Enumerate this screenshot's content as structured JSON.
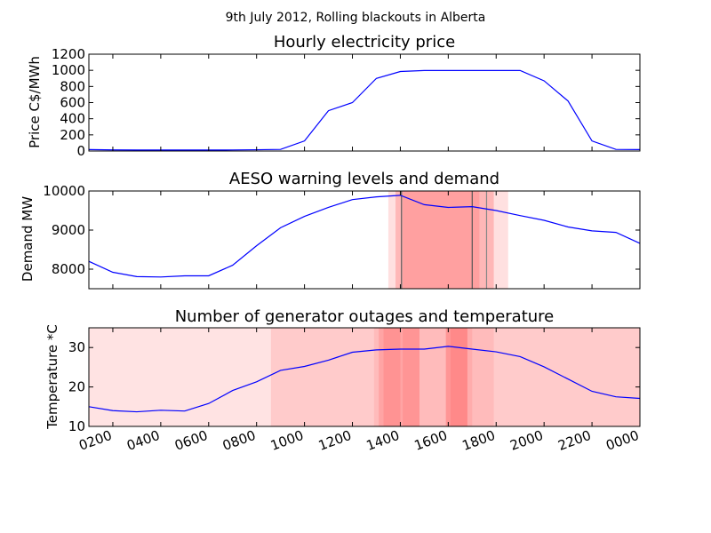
{
  "figure_title": "9th July 2012, Rolling blackouts in Alberta",
  "x_tick_labels": [
    "0200",
    "0400",
    "0600",
    "0800",
    "1000",
    "1200",
    "1400",
    "1600",
    "1800",
    "2000",
    "2200",
    "0000"
  ],
  "colors": {
    "line": "#0000ff",
    "band_light": "#ff0000",
    "frame": "#000000"
  },
  "chart_data": [
    {
      "type": "line",
      "title": "Hourly electricity price",
      "xlabel": "",
      "ylabel": "Price C$/MWh",
      "xlim": [
        1,
        24
      ],
      "ylim": [
        0,
        1200
      ],
      "yticks": [
        0,
        200,
        400,
        600,
        800,
        1000,
        1200
      ],
      "x": [
        1,
        2,
        3,
        4,
        5,
        6,
        7,
        8,
        9,
        10,
        11,
        12,
        13,
        14,
        15,
        16,
        17,
        18,
        19,
        20,
        21,
        22,
        23,
        24
      ],
      "series": [
        {
          "values": [
            18,
            14,
            12,
            12,
            12,
            12,
            13,
            16,
            20,
            125,
            500,
            600,
            900,
            985,
            998,
            998,
            998,
            998,
            998,
            870,
            620,
            125,
            20,
            18
          ]
        }
      ],
      "bands": []
    },
    {
      "type": "line",
      "title": "AESO warning levels and demand",
      "xlabel": "",
      "ylabel": "Demand MW",
      "xlim": [
        1,
        24
      ],
      "ylim": [
        7500,
        10000
      ],
      "yticks": [
        8000,
        9000,
        10000
      ],
      "x": [
        1,
        2,
        3,
        4,
        5,
        6,
        7,
        8,
        9,
        10,
        11,
        12,
        13,
        14,
        15,
        16,
        17,
        18,
        19,
        20,
        21,
        22,
        23,
        24
      ],
      "series": [
        {
          "values": [
            8200,
            7920,
            7810,
            7800,
            7830,
            7830,
            8100,
            8600,
            9060,
            9350,
            9580,
            9780,
            9850,
            9890,
            9650,
            9580,
            9600,
            9500,
            9370,
            9250,
            9080,
            8980,
            8940,
            8660
          ]
        }
      ],
      "bands": [
        {
          "x0": 13.5,
          "x1": 18.5,
          "alpha": 0.12
        },
        {
          "x0": 13.8,
          "x1": 17.9,
          "alpha": 0.18
        },
        {
          "x0": 14.1,
          "x1": 17.3,
          "alpha": 0.12
        }
      ],
      "vlines": [
        {
          "x": 14.05,
          "color": "#555555"
        },
        {
          "x": 17.0,
          "color": "#555555"
        },
        {
          "x": 17.6,
          "color": "#888888"
        }
      ]
    },
    {
      "type": "line",
      "title": "Number of generator outages and temperature",
      "xlabel": "",
      "ylabel": "Temperature *C",
      "xlim": [
        1,
        24
      ],
      "ylim": [
        10,
        35
      ],
      "yticks": [
        10,
        20,
        30
      ],
      "x": [
        1,
        2,
        3,
        4,
        5,
        6,
        7,
        8,
        9,
        10,
        11,
        12,
        13,
        14,
        15,
        16,
        17,
        18,
        19,
        20,
        21,
        22,
        23,
        24
      ],
      "series": [
        {
          "values": [
            15,
            14,
            13.7,
            14.1,
            13.9,
            15.8,
            19.1,
            21.3,
            24.2,
            25.2,
            26.8,
            28.8,
            29.4,
            29.6,
            29.6,
            30.3,
            29.6,
            28.9,
            27.7,
            25.1,
            22,
            18.9,
            17.5,
            17.1
          ]
        }
      ],
      "bands": [
        {
          "x0": 1,
          "x1": 24,
          "alpha": 0.11
        },
        {
          "x0": 8.6,
          "x1": 24,
          "alpha": 0.1
        },
        {
          "x0": 12.9,
          "x1": 17.9,
          "alpha": 0.08
        },
        {
          "x0": 13.1,
          "x1": 14.1,
          "alpha": 0.12
        },
        {
          "x0": 13.3,
          "x1": 14.0,
          "alpha": 0.1
        },
        {
          "x0": 14.1,
          "x1": 14.8,
          "alpha": 0.2
        },
        {
          "x0": 15.9,
          "x1": 16.8,
          "alpha": 0.2
        },
        {
          "x0": 16.1,
          "x1": 17.0,
          "alpha": 0.08
        }
      ]
    }
  ]
}
